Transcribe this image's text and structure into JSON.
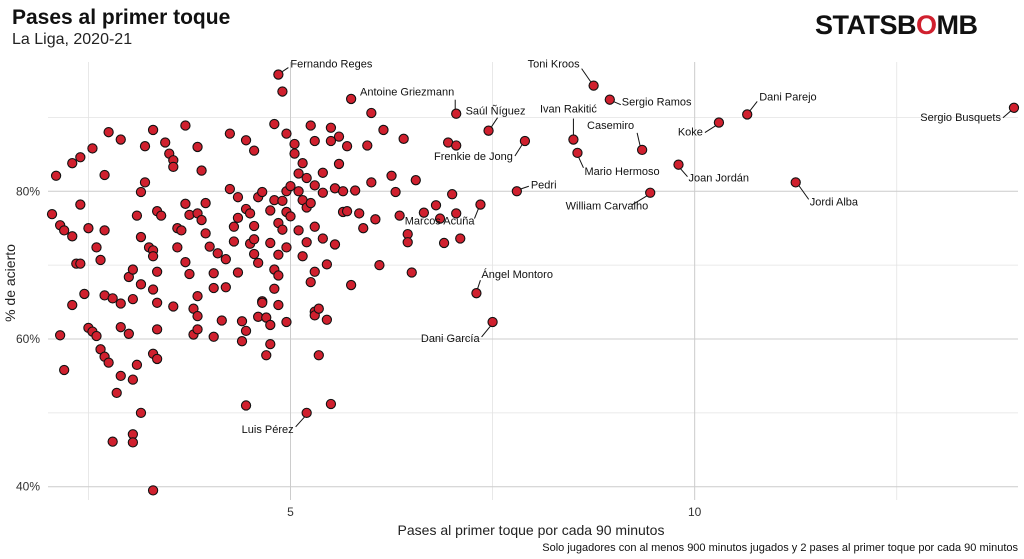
{
  "header": {
    "title": "Pases al primer toque",
    "subtitle": "La Liga, 2020-21",
    "logo_main": "STATSB",
    "logo_accent": "O",
    "logo_end": "MB"
  },
  "footnote": "Solo jugadores con al menos 900 minutos jugados y 2 pases al primer toque por cada 90 minutos",
  "colors": {
    "point_fill": "#d0202e",
    "point_stroke": "#111111",
    "grid": "#cccccc",
    "logo_accent": "#d0202e"
  },
  "chart_data": {
    "type": "scatter",
    "title": "Pases al primer toque",
    "subtitle": "La Liga, 2020-21",
    "xlabel": "Pases al primer toque por cada 90 minutos",
    "ylabel": "% de acierto",
    "xlim": [
      2.0,
      14.0
    ],
    "ylim": [
      38.2,
      97.5
    ],
    "x_ticks": [
      5,
      10
    ],
    "x_tick_labels": [
      "5",
      "10"
    ],
    "y_ticks": [
      40,
      60,
      80
    ],
    "y_tick_labels": [
      "40%",
      "60%",
      "80%"
    ],
    "grid": true,
    "labeled_points": [
      {
        "name": "Fernando Reges",
        "x": 4.85,
        "y": 95.8
      },
      {
        "name": "Toni Kroos",
        "x": 8.75,
        "y": 94.3
      },
      {
        "name": "Sergio Ramos",
        "x": 8.95,
        "y": 92.4
      },
      {
        "name": "Antoine Griezmann",
        "x": 7.05,
        "y": 90.5
      },
      {
        "name": "Saúl Ñíguez",
        "x": 7.45,
        "y": 88.2
      },
      {
        "name": "Ivan Rakitić",
        "x": 8.5,
        "y": 87.0
      },
      {
        "name": "Casemiro",
        "x": 9.35,
        "y": 85.6
      },
      {
        "name": "Dani Parejo",
        "x": 10.65,
        "y": 90.4
      },
      {
        "name": "Koke",
        "x": 10.3,
        "y": 89.3
      },
      {
        "name": "Sergio Busquets",
        "x": 13.95,
        "y": 91.3
      },
      {
        "name": "Frenkie de Jong",
        "x": 7.9,
        "y": 86.8
      },
      {
        "name": "Mario Hermoso",
        "x": 8.55,
        "y": 85.2
      },
      {
        "name": "Pedri",
        "x": 7.8,
        "y": 80.0
      },
      {
        "name": "Joan Jordán",
        "x": 9.8,
        "y": 83.6
      },
      {
        "name": "Jordi Alba",
        "x": 11.25,
        "y": 81.2
      },
      {
        "name": "William Carvalho",
        "x": 9.45,
        "y": 79.8
      },
      {
        "name": "Marcos Acuña",
        "x": 7.35,
        "y": 78.2
      },
      {
        "name": "Ángel Montoro",
        "x": 7.3,
        "y": 66.2
      },
      {
        "name": "Dani García",
        "x": 7.5,
        "y": 62.3
      },
      {
        "name": "Luis Pérez",
        "x": 5.2,
        "y": 50.0
      }
    ],
    "points": [
      [
        2.05,
        76.9
      ],
      [
        2.1,
        82.1
      ],
      [
        2.15,
        75.4
      ],
      [
        2.2,
        74.7
      ],
      [
        2.15,
        60.5
      ],
      [
        2.2,
        55.8
      ],
      [
        2.3,
        73.9
      ],
      [
        2.35,
        70.2
      ],
      [
        2.4,
        70.2
      ],
      [
        2.4,
        78.2
      ],
      [
        2.3,
        83.8
      ],
      [
        2.4,
        84.6
      ],
      [
        2.55,
        85.8
      ],
      [
        2.45,
        66.1
      ],
      [
        2.5,
        61.5
      ],
      [
        2.55,
        61.0
      ],
      [
        2.6,
        60.4
      ],
      [
        2.3,
        64.6
      ],
      [
        2.5,
        75.0
      ],
      [
        2.6,
        72.4
      ],
      [
        2.65,
        70.7
      ],
      [
        2.7,
        82.2
      ],
      [
        2.7,
        74.7
      ],
      [
        2.75,
        88.0
      ],
      [
        2.9,
        87.0
      ],
      [
        2.65,
        58.6
      ],
      [
        2.7,
        57.6
      ],
      [
        2.7,
        65.9
      ],
      [
        2.75,
        56.8
      ],
      [
        2.8,
        65.5
      ],
      [
        2.8,
        46.1
      ],
      [
        2.85,
        52.7
      ],
      [
        2.9,
        55.0
      ],
      [
        2.9,
        61.6
      ],
      [
        2.9,
        64.8
      ],
      [
        3.0,
        60.7
      ],
      [
        3.0,
        68.4
      ],
      [
        3.05,
        69.4
      ],
      [
        3.05,
        65.4
      ],
      [
        3.1,
        56.5
      ],
      [
        3.05,
        54.5
      ],
      [
        3.05,
        47.1
      ],
      [
        3.05,
        46.0
      ],
      [
        3.1,
        76.7
      ],
      [
        3.15,
        73.8
      ],
      [
        3.15,
        79.9
      ],
      [
        3.2,
        81.2
      ],
      [
        3.15,
        67.4
      ],
      [
        3.15,
        50.0
      ],
      [
        3.2,
        86.1
      ],
      [
        3.25,
        72.4
      ],
      [
        3.3,
        72.0
      ],
      [
        3.3,
        71.2
      ],
      [
        3.3,
        66.7
      ],
      [
        3.3,
        58.0
      ],
      [
        3.35,
        57.3
      ],
      [
        3.3,
        88.3
      ],
      [
        3.3,
        39.5
      ],
      [
        3.35,
        61.3
      ],
      [
        3.35,
        69.1
      ],
      [
        3.35,
        64.9
      ],
      [
        3.35,
        77.3
      ],
      [
        3.4,
        76.7
      ],
      [
        3.45,
        86.6
      ],
      [
        3.5,
        85.1
      ],
      [
        3.55,
        84.2
      ],
      [
        3.55,
        83.3
      ],
      [
        3.55,
        64.4
      ],
      [
        3.6,
        75.0
      ],
      [
        3.6,
        72.4
      ],
      [
        3.65,
        74.7
      ],
      [
        3.7,
        70.4
      ],
      [
        3.7,
        78.3
      ],
      [
        3.7,
        88.9
      ],
      [
        3.75,
        76.8
      ],
      [
        3.75,
        68.8
      ],
      [
        3.8,
        64.1
      ],
      [
        3.8,
        60.6
      ],
      [
        3.85,
        77.0
      ],
      [
        3.85,
        65.8
      ],
      [
        3.85,
        63.1
      ],
      [
        3.85,
        61.3
      ],
      [
        3.9,
        82.8
      ],
      [
        3.9,
        76.1
      ],
      [
        3.95,
        78.4
      ],
      [
        3.95,
        74.3
      ],
      [
        4.0,
        72.5
      ],
      [
        4.05,
        66.9
      ],
      [
        4.05,
        60.3
      ],
      [
        4.05,
        68.9
      ],
      [
        4.1,
        71.6
      ],
      [
        4.15,
        62.5
      ],
      [
        4.2,
        70.8
      ],
      [
        4.2,
        67.0
      ],
      [
        4.25,
        80.3
      ],
      [
        4.3,
        75.2
      ],
      [
        4.3,
        73.2
      ],
      [
        4.35,
        76.4
      ],
      [
        4.35,
        79.2
      ],
      [
        4.35,
        69.0
      ],
      [
        4.4,
        62.4
      ],
      [
        4.4,
        59.7
      ],
      [
        4.45,
        61.1
      ],
      [
        4.45,
        51.0
      ],
      [
        4.45,
        77.6
      ],
      [
        4.5,
        72.9
      ],
      [
        4.5,
        77.0
      ],
      [
        4.55,
        75.3
      ],
      [
        4.55,
        73.5
      ],
      [
        4.55,
        71.5
      ],
      [
        4.55,
        85.5
      ],
      [
        4.6,
        79.2
      ],
      [
        4.6,
        70.3
      ],
      [
        4.6,
        63.0
      ],
      [
        4.65,
        79.9
      ],
      [
        4.65,
        65.1
      ],
      [
        4.65,
        64.9
      ],
      [
        4.7,
        62.9
      ],
      [
        4.7,
        57.8
      ],
      [
        4.75,
        77.4
      ],
      [
        4.75,
        73.0
      ],
      [
        4.75,
        61.9
      ],
      [
        4.75,
        59.3
      ],
      [
        4.8,
        78.8
      ],
      [
        4.8,
        69.4
      ],
      [
        4.8,
        66.8
      ],
      [
        4.85,
        75.7
      ],
      [
        4.85,
        71.4
      ],
      [
        4.85,
        68.6
      ],
      [
        4.85,
        64.6
      ],
      [
        4.9,
        78.7
      ],
      [
        4.9,
        74.8
      ],
      [
        4.95,
        80.0
      ],
      [
        4.95,
        77.2
      ],
      [
        4.95,
        72.4
      ],
      [
        4.95,
        62.3
      ],
      [
        5.0,
        80.7
      ],
      [
        5.0,
        76.6
      ],
      [
        5.05,
        86.4
      ],
      [
        5.05,
        85.1
      ],
      [
        5.1,
        82.4
      ],
      [
        5.1,
        80.0
      ],
      [
        5.1,
        74.7
      ],
      [
        5.15,
        83.8
      ],
      [
        5.15,
        78.8
      ],
      [
        5.15,
        71.2
      ],
      [
        5.2,
        81.8
      ],
      [
        5.2,
        77.8
      ],
      [
        5.2,
        73.1
      ],
      [
        5.25,
        88.9
      ],
      [
        5.25,
        78.4
      ],
      [
        5.25,
        67.7
      ],
      [
        5.3,
        86.8
      ],
      [
        5.3,
        80.8
      ],
      [
        5.3,
        75.2
      ],
      [
        5.3,
        69.1
      ],
      [
        5.3,
        63.7
      ],
      [
        5.3,
        63.2
      ],
      [
        5.35,
        64.1
      ],
      [
        5.35,
        57.8
      ],
      [
        5.4,
        79.8
      ],
      [
        5.4,
        82.5
      ],
      [
        5.4,
        73.6
      ],
      [
        5.45,
        70.1
      ],
      [
        5.45,
        62.6
      ],
      [
        5.5,
        88.6
      ],
      [
        5.5,
        51.2
      ],
      [
        5.55,
        80.4
      ],
      [
        5.55,
        72.8
      ],
      [
        5.6,
        87.4
      ],
      [
        5.6,
        83.7
      ],
      [
        5.65,
        80.0
      ],
      [
        5.65,
        77.2
      ],
      [
        5.7,
        86.1
      ],
      [
        5.7,
        77.3
      ],
      [
        5.75,
        67.3
      ],
      [
        5.8,
        80.1
      ],
      [
        5.85,
        77.0
      ],
      [
        5.9,
        75.0
      ],
      [
        5.95,
        86.2
      ],
      [
        6.0,
        81.2
      ],
      [
        6.05,
        76.2
      ],
      [
        6.1,
        70.0
      ],
      [
        6.15,
        88.3
      ],
      [
        6.25,
        82.1
      ],
      [
        6.3,
        79.9
      ],
      [
        6.35,
        76.7
      ],
      [
        6.4,
        87.1
      ],
      [
        6.45,
        74.2
      ],
      [
        6.45,
        73.1
      ],
      [
        6.5,
        69.0
      ],
      [
        6.55,
        81.5
      ],
      [
        6.65,
        77.1
      ],
      [
        6.8,
        78.1
      ],
      [
        6.85,
        76.3
      ],
      [
        6.9,
        73.0
      ],
      [
        6.95,
        86.6
      ],
      [
        7.0,
        79.6
      ],
      [
        7.05,
        86.2
      ],
      [
        7.05,
        77.0
      ],
      [
        7.1,
        73.6
      ],
      [
        4.8,
        89.1
      ],
      [
        5.5,
        86.8
      ],
      [
        6.0,
        90.6
      ],
      [
        5.75,
        92.5
      ],
      [
        4.9,
        93.5
      ],
      [
        4.95,
        87.8
      ],
      [
        4.45,
        86.9
      ],
      [
        4.25,
        87.8
      ],
      [
        3.85,
        86.0
      ]
    ]
  }
}
